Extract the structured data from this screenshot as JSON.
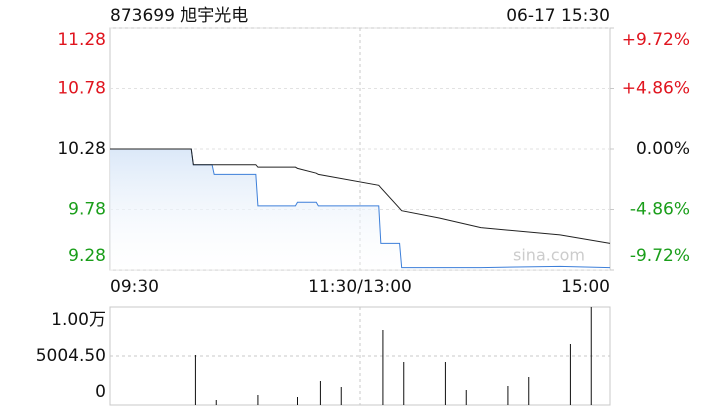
{
  "chart_data": [
    {
      "type": "line",
      "title": "873699 旭宇光电",
      "subtitle": "06-17 15:30",
      "watermark": "sina.com",
      "x": [
        "09:30",
        "10:09",
        "10:10",
        "10:19",
        "10:20",
        "10:40",
        "10:41",
        "10:59",
        "11:00",
        "11:09",
        "11:10",
        "13:09",
        "13:10",
        "13:19",
        "13:20",
        "13:38",
        "13:58",
        "14:36",
        "15:00"
      ],
      "series": [
        {
          "color": "#3d7fd9",
          "values": [
            10.28,
            10.28,
            10.15,
            10.15,
            10.07,
            10.07,
            9.81,
            9.81,
            9.84,
            9.84,
            9.81,
            9.81,
            9.5,
            9.5,
            9.3,
            9.3,
            9.3,
            9.31,
            9.3
          ]
        },
        {
          "color": "#222222",
          "values": [
            10.28,
            10.28,
            10.15,
            10.15,
            10.15,
            10.15,
            10.13,
            10.13,
            10.12,
            10.08,
            10.07,
            9.98,
            9.96,
            9.79,
            9.77,
            9.71,
            9.63,
            9.57,
            9.5
          ]
        }
      ],
      "xticks": [
        "09:30",
        "11:30/13:00",
        "15:00"
      ],
      "ylim": [
        9.28,
        11.28
      ],
      "yticks": [
        11.28,
        10.78,
        10.28,
        9.78,
        9.28
      ],
      "y2lim": [
        -9.72,
        9.72
      ],
      "y2ticks": [
        {
          "value": 9.72,
          "label": "+9.72%"
        },
        {
          "value": 4.86,
          "label": "+4.86%"
        },
        {
          "value": 0,
          "label": "0.00%"
        },
        {
          "value": -4.86,
          "label": "-4.86%"
        },
        {
          "value": -9.72,
          "label": "-9.72%"
        }
      ],
      "up_color": "#e0141e",
      "down_color": "#1a9e1a",
      "flat_color": "#111111"
    },
    {
      "type": "bar",
      "color": "#111111",
      "x": [
        "10:11",
        "10:21",
        "10:41",
        "11:00",
        "11:11",
        "11:21",
        "13:11",
        "13:21",
        "13:41",
        "13:51",
        "14:11",
        "14:21",
        "14:41",
        "14:51"
      ],
      "values": [
        5107,
        511,
        1021,
        817,
        2451,
        1838,
        7660,
        4392,
        4392,
        1532,
        1940,
        2860,
        6230,
        10009
      ],
      "ylim": [
        0,
        10009
      ],
      "yticks": [
        {
          "value": 10009,
          "label": "1.00万"
        },
        {
          "value": 5004.5,
          "label": "5004.50"
        },
        0
      ]
    }
  ]
}
